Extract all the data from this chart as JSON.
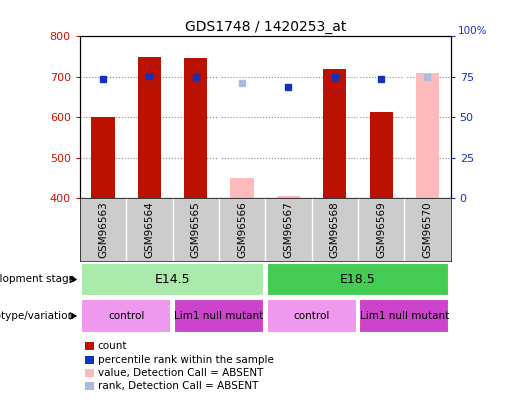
{
  "title": "GDS1748 / 1420253_at",
  "samples": [
    "GSM96563",
    "GSM96564",
    "GSM96565",
    "GSM96566",
    "GSM96567",
    "GSM96568",
    "GSM96569",
    "GSM96570"
  ],
  "count_values": [
    601,
    749,
    748,
    null,
    null,
    720,
    614,
    null
  ],
  "count_absent_values": [
    null,
    null,
    null,
    451,
    407,
    null,
    null,
    709
  ],
  "rank_values": [
    73.7,
    75.5,
    74.8,
    null,
    68.6,
    74.8,
    74.0,
    null
  ],
  "rank_absent_values": [
    null,
    null,
    null,
    71.0,
    null,
    null,
    null,
    74.8
  ],
  "ylim_left": [
    400,
    800
  ],
  "ylim_right": [
    0,
    100
  ],
  "yticks_left": [
    400,
    500,
    600,
    700,
    800
  ],
  "yticks_right": [
    0,
    25,
    50,
    75,
    100
  ],
  "development_stages": [
    {
      "label": "E14.5",
      "start": 0,
      "end": 4,
      "color": "#aaeaaa"
    },
    {
      "label": "E18.5",
      "start": 4,
      "end": 8,
      "color": "#44cc55"
    }
  ],
  "genotype_groups": [
    {
      "label": "control",
      "start": 0,
      "end": 2,
      "color": "#ee99ee"
    },
    {
      "label": "Lim1 null mutant",
      "start": 2,
      "end": 4,
      "color": "#cc44cc"
    },
    {
      "label": "control",
      "start": 4,
      "end": 6,
      "color": "#ee99ee"
    },
    {
      "label": "Lim1 null mutant",
      "start": 6,
      "end": 8,
      "color": "#cc44cc"
    }
  ],
  "bar_width": 0.5,
  "count_color": "#bb1100",
  "count_absent_color": "#ffbbbb",
  "rank_color": "#1133bb",
  "rank_absent_color": "#aabbdd",
  "grid_color": "#888888",
  "plot_bg_color": "#ffffff",
  "xlabel_bg_color": "#cccccc",
  "left_tick_color": "#cc1100",
  "right_tick_color": "#1133bb",
  "legend": [
    {
      "color": "#bb1100",
      "label": "count"
    },
    {
      "color": "#1133bb",
      "label": "percentile rank within the sample"
    },
    {
      "color": "#ffbbbb",
      "label": "value, Detection Call = ABSENT"
    },
    {
      "color": "#aabbdd",
      "label": "rank, Detection Call = ABSENT"
    }
  ]
}
